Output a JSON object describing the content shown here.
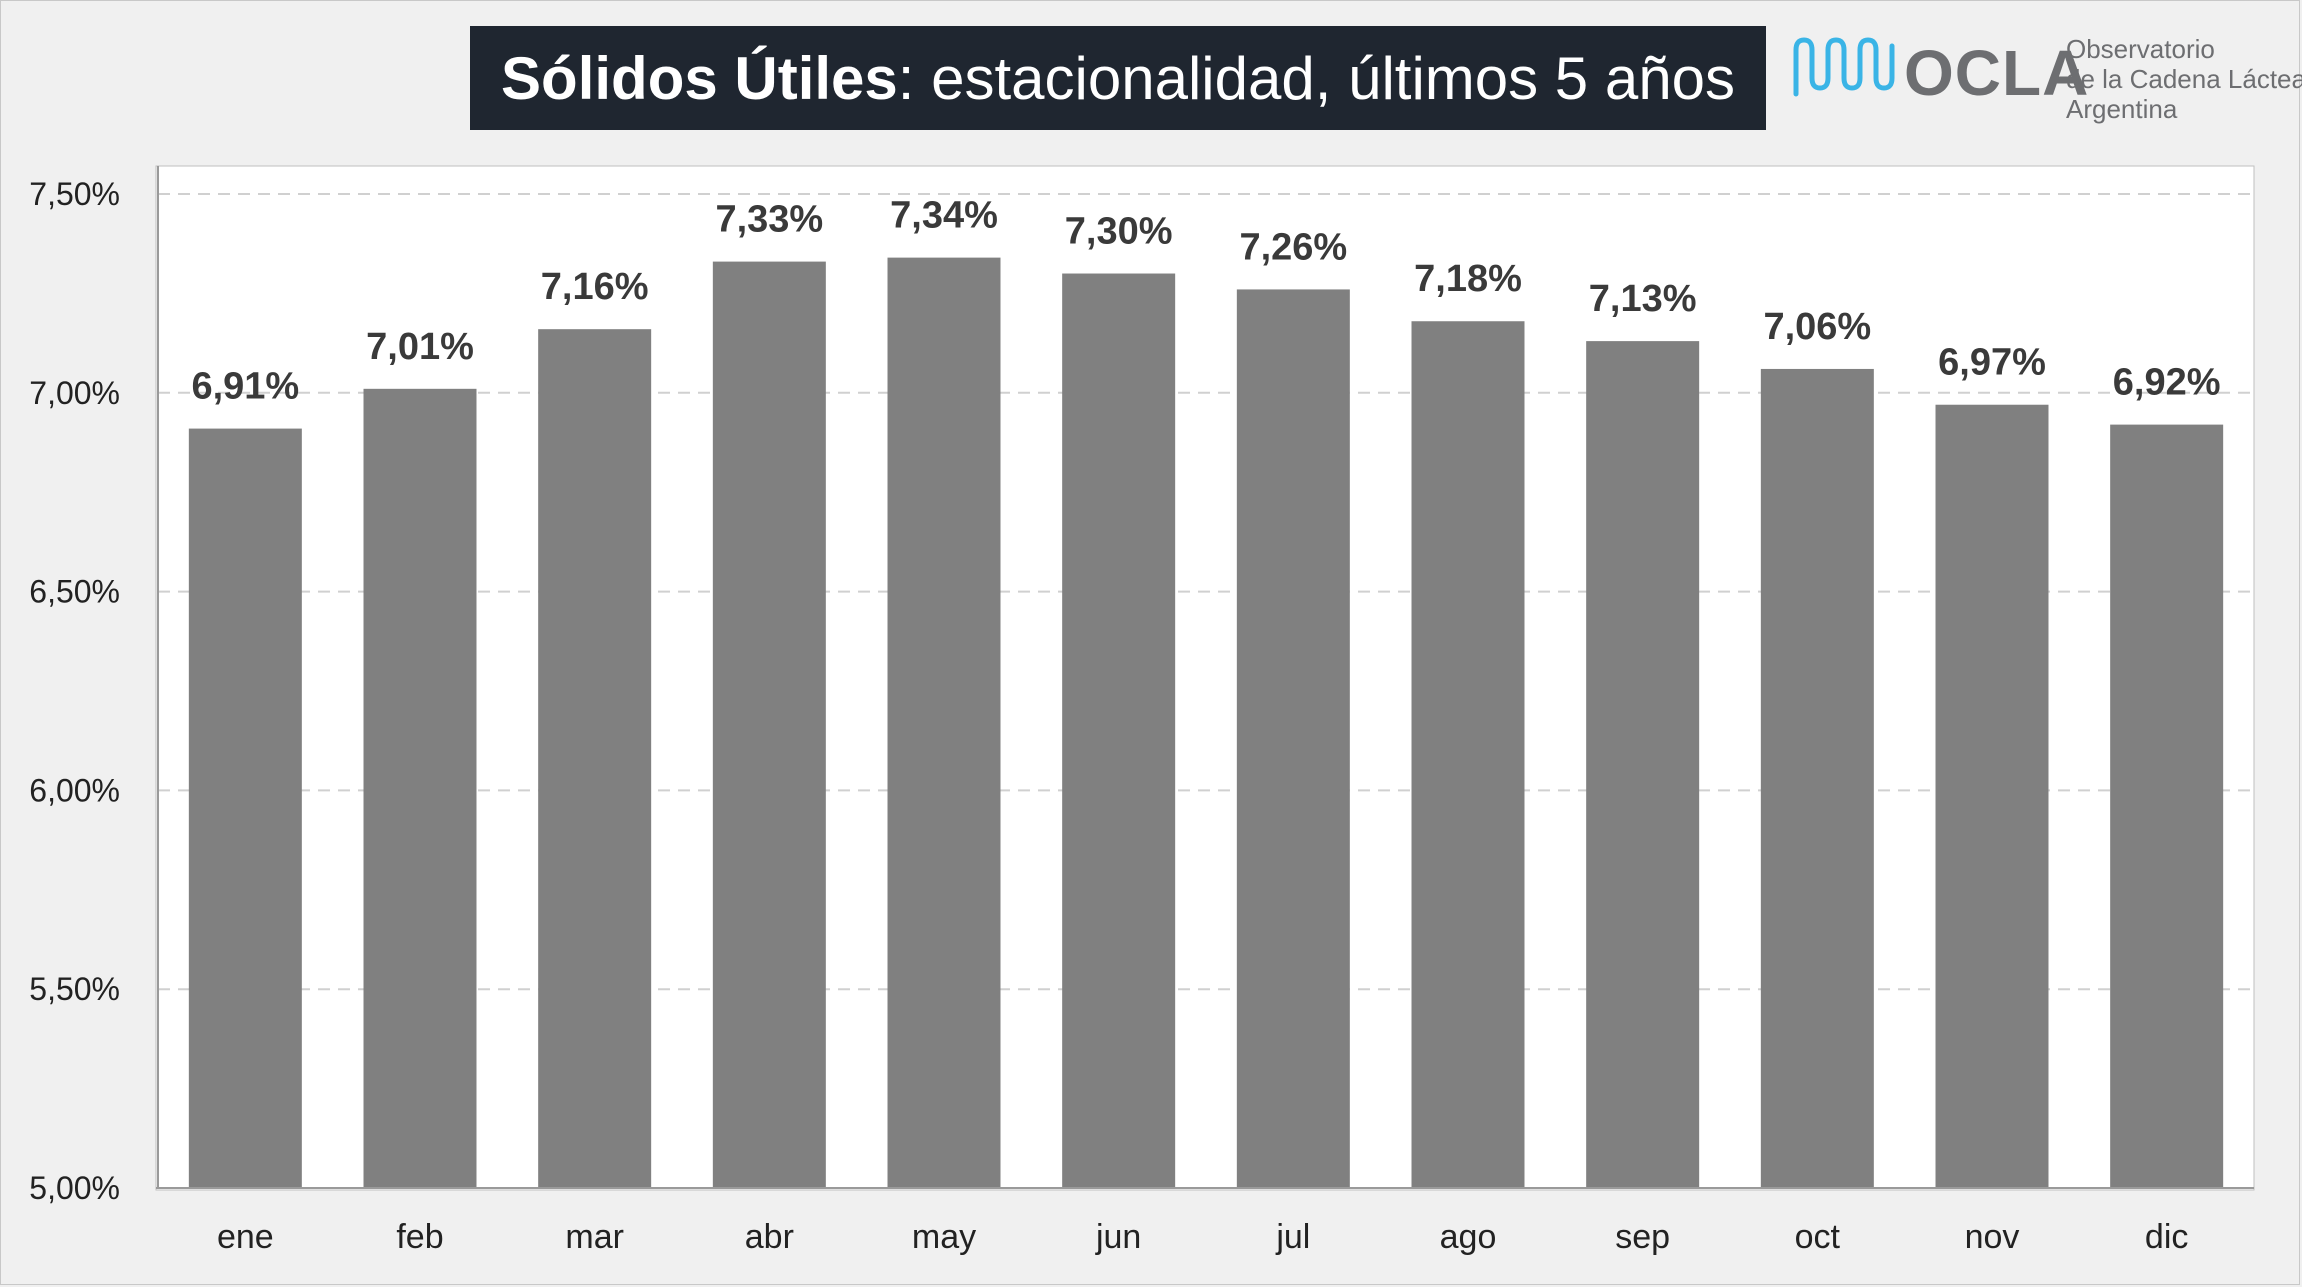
{
  "header": {
    "title_bold": "Sólidos Útiles",
    "title_rest": ": estacionalidad, últimos 5 años"
  },
  "logo": {
    "icon": "milk-wave-icon",
    "brand": "OCLA",
    "line1": "Observatorio",
    "line2": "de la Cadena Láctea",
    "line3": "Argentina",
    "brand_color": "#6d6e71",
    "wave_color": "#3ab4e6"
  },
  "colors": {
    "bar": "#808080",
    "title_bg": "#1f2630",
    "plot_bg": "#ffffff",
    "grid": "#d0d0d0"
  },
  "chart_data": {
    "type": "bar",
    "title": "Sólidos Útiles: estacionalidad, últimos 5 años",
    "xlabel": "",
    "ylabel": "",
    "categories": [
      "ene",
      "feb",
      "mar",
      "abr",
      "may",
      "jun",
      "jul",
      "ago",
      "sep",
      "oct",
      "nov",
      "dic"
    ],
    "values": [
      6.91,
      7.01,
      7.16,
      7.33,
      7.34,
      7.3,
      7.26,
      7.18,
      7.13,
      7.06,
      6.97,
      6.92
    ],
    "data_labels": [
      "6,91%",
      "7,01%",
      "7,16%",
      "7,33%",
      "7,34%",
      "7,30%",
      "7,26%",
      "7,18%",
      "7,13%",
      "7,06%",
      "6,97%",
      "6,92%"
    ],
    "ylim": [
      5.0,
      7.5
    ],
    "yticks": [
      5.0,
      5.5,
      6.0,
      6.5,
      7.0,
      7.5
    ],
    "ytick_labels": [
      "5,00%",
      "5,50%",
      "6,00%",
      "6,50%",
      "7,00%",
      "7,50%"
    ],
    "grid": true,
    "legend": "none"
  }
}
